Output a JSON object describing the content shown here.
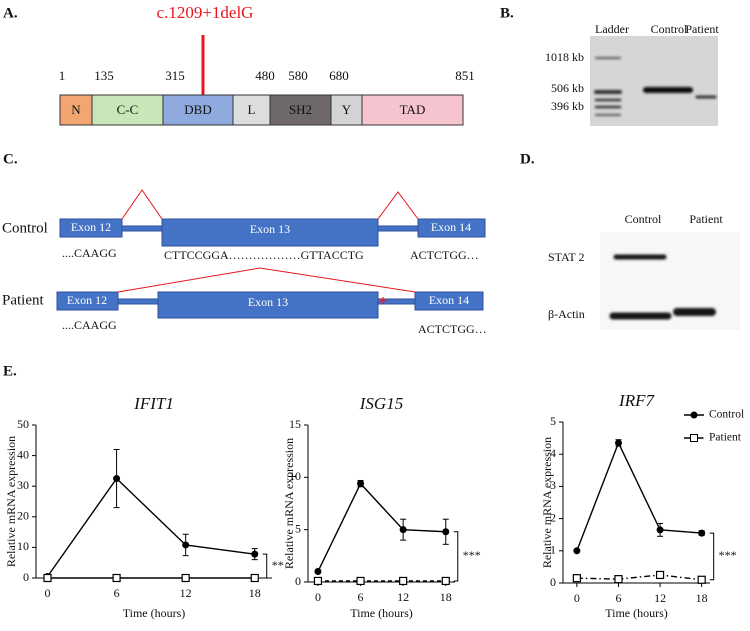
{
  "panel_a": {
    "label": "A.",
    "mutation": "c.1209+1delG",
    "positions": [
      1,
      135,
      315,
      480,
      580,
      680,
      851
    ],
    "domains": [
      {
        "name": "N",
        "color": "#f3a672"
      },
      {
        "name": "C-C",
        "color": "#c9e6b8"
      },
      {
        "name": "DBD",
        "color": "#8eaadf"
      },
      {
        "name": "L",
        "color": "#dedede"
      },
      {
        "name": "SH2",
        "color": "#6e6868"
      },
      {
        "name": "Y",
        "color": "#d4d4d4"
      },
      {
        "name": "TAD",
        "color": "#f5c4ce"
      }
    ]
  },
  "panel_b": {
    "label": "B.",
    "lanes": [
      "Ladder",
      "Control",
      "Patient"
    ],
    "sizes": [
      "1018 kb",
      "506 kb",
      "396 kb"
    ]
  },
  "panel_c": {
    "label": "C.",
    "rows": [
      {
        "name": "Control",
        "exons": [
          "Exon 12",
          "Exon 13",
          "Exon 14"
        ],
        "sequences": [
          "....CAAGG",
          "CTTCCGGA………………GTTACCTG",
          "ACTCTGG…"
        ]
      },
      {
        "name": "Patient",
        "exons": [
          "Exon 12",
          "Exon 13",
          "Exon 14"
        ],
        "sequences": [
          "....CAAGG",
          "ACTCTGG…"
        ]
      }
    ]
  },
  "panel_d": {
    "label": "D.",
    "lanes": [
      "Control",
      "Patient"
    ],
    "proteins": [
      "STAT 2",
      "β-Actin"
    ]
  },
  "panel_e": {
    "label": "E."
  },
  "chart_data": [
    {
      "type": "line",
      "title": "IFIT1",
      "y_label": "Relative mRNA expression",
      "x_label": "Time (hours)",
      "x": [
        0,
        6,
        12,
        18
      ],
      "xlim": [
        -1,
        19.5
      ],
      "xticks": [
        0,
        6,
        12,
        18
      ],
      "ylim": [
        0,
        50
      ],
      "yticks": [
        0,
        10,
        20,
        30,
        40,
        50
      ],
      "legend": false,
      "significance": "**",
      "series": [
        {
          "color": "#000000",
          "marker": "circle",
          "linestyle": "solid",
          "values": [
            0.5,
            32.5,
            10.8,
            7.8
          ],
          "errors": [
            0.5,
            9.5,
            3.5,
            1.8
          ]
        },
        {
          "color": "#000000",
          "marker": "square",
          "linestyle": "solid",
          "values": [
            0,
            0,
            0,
            0
          ],
          "errors": [
            0,
            0,
            0,
            0
          ]
        }
      ]
    },
    {
      "type": "line",
      "title": "ISG15",
      "y_label": "Relative mRNA expression",
      "x_label": "Time (hours)",
      "x": [
        0,
        6,
        12,
        18
      ],
      "xlim": [
        -1.4,
        19.3
      ],
      "xticks": [
        0,
        6,
        12,
        18
      ],
      "ylim": [
        0,
        15
      ],
      "yticks": [
        0,
        5,
        10,
        15
      ],
      "legend": false,
      "significance": "***",
      "series": [
        {
          "color": "#000000",
          "marker": "circle",
          "linestyle": "solid",
          "values": [
            1.0,
            9.4,
            5.0,
            4.8
          ],
          "errors": [
            0,
            0.3,
            1.0,
            1.2
          ]
        },
        {
          "color": "#000000",
          "marker": "square",
          "linestyle": "dashed",
          "values": [
            0.1,
            0.1,
            0.1,
            0.1
          ],
          "errors": [
            0,
            0,
            0,
            0
          ]
        }
      ]
    },
    {
      "type": "line",
      "title": "IRF7",
      "y_label": "Relative mRNA expression",
      "x_label": "Time (hours)",
      "x": [
        0,
        6,
        12,
        18
      ],
      "xlim": [
        -2,
        19.2
      ],
      "xticks": [
        0,
        6,
        12,
        18
      ],
      "ylim": [
        0,
        5
      ],
      "yticks": [
        0,
        1,
        2,
        3,
        4,
        5
      ],
      "legend": true,
      "significance": "***",
      "series": [
        {
          "name": "Control",
          "color": "#000000",
          "marker": "circle",
          "linestyle": "solid",
          "values": [
            1.0,
            4.35,
            1.65,
            1.55
          ],
          "errors": [
            0,
            0.1,
            0.2,
            0.07
          ]
        },
        {
          "name": "Patient",
          "color": "#000000",
          "marker": "square",
          "linestyle": "dashdot",
          "values": [
            0.15,
            0.12,
            0.25,
            0.1
          ],
          "errors": [
            0,
            0,
            0.1,
            0
          ]
        }
      ]
    }
  ]
}
